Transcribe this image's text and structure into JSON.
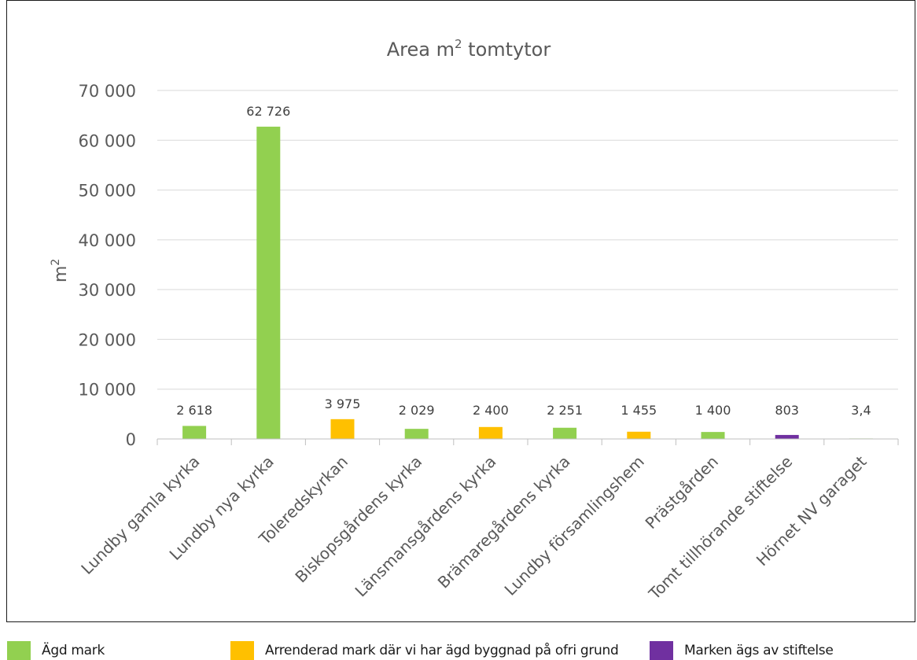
{
  "chart_data": {
    "type": "bar",
    "title": "Area m",
    "title_sup": "2",
    "title_rest": " tomtytor",
    "ylabel": "m",
    "ylabel_sup": "2",
    "xlabel": "",
    "ylim": [
      0,
      70000
    ],
    "yticks": [
      0,
      10000,
      20000,
      30000,
      40000,
      50000,
      60000,
      70000
    ],
    "ytick_labels": [
      "0",
      "10 000",
      "20 000",
      "30 000",
      "40 000",
      "50 000",
      "60 000",
      "70 000"
    ],
    "grid": true,
    "categories": [
      "Lundby gamla kyrka",
      "Lundby nya kyrka",
      "Toleredskyrkan",
      "Biskopsgårdens kyrka",
      "Länsmansgårdens kyrka",
      "Brämaregårdens kyrka",
      "Lundby församlingshem",
      "Prästgården",
      "Tomt tillhörande stiftelse",
      "Hörnet NV garaget"
    ],
    "values": [
      2618,
      62726,
      3975,
      2029,
      2400,
      2251,
      1455,
      1400,
      803,
      3.4
    ],
    "value_labels": [
      "2 618",
      "62 726",
      "3 975",
      "2 029",
      "2 400",
      "2 251",
      "1 455",
      "1 400",
      "803",
      "3,4"
    ],
    "bar_group": [
      0,
      0,
      1,
      0,
      1,
      0,
      1,
      0,
      2,
      0
    ],
    "legend_position": "bottom"
  },
  "legend": [
    {
      "label": "Ägd mark",
      "color": "#92d050"
    },
    {
      "label": "Arrenderad mark där vi har ägd byggnad på ofri grund",
      "color": "#ffc000"
    },
    {
      "label": "Marken ägs av stiftelse",
      "color": "#7030a0"
    }
  ],
  "colors": {
    "axis": "#bfbfbf",
    "grid": "#d9d9d9",
    "text": "#595959",
    "title": "#595959"
  }
}
